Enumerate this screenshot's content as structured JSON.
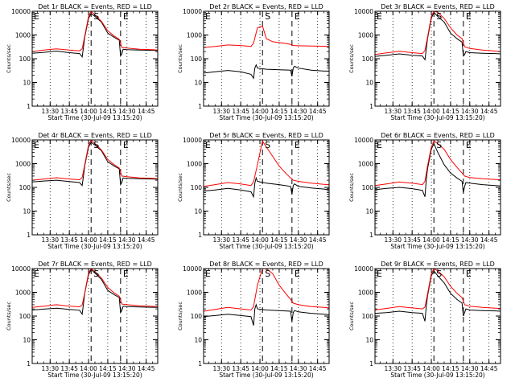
{
  "figure": {
    "x_title": "Start Time (30-Jul-09 13:15:20)",
    "y_title": "Counts/sec",
    "x_ticks": [
      "13:30",
      "13:45",
      "14:00",
      "14:15",
      "14:30",
      "14:45"
    ],
    "y_ticks": [
      "1",
      "10",
      "100",
      "1000",
      "10000"
    ],
    "marker_labels": [
      "E",
      "S",
      "E"
    ]
  },
  "colors": {
    "events": "#000000",
    "lld": "#ff0000",
    "axes": "#000000"
  },
  "chart_data": [
    {
      "type": "line",
      "title": "Det 1r BLACK = Events, RED = LLD",
      "xlabel": "Start Time (30-Jul-09 13:15:20)",
      "ylabel": "Counts/sec",
      "yscale": "log",
      "ylim": [
        1,
        10000
      ],
      "xlim": [
        "13:16",
        "14:54"
      ],
      "markers": {
        "E1": "13:15",
        "S": "14:02",
        "E2": "14:25"
      },
      "series": [
        {
          "name": "BLACK",
          "x": [
            "13:16",
            "13:25",
            "13:35",
            "13:45",
            "13:53",
            "13:55",
            "13:56",
            "13:57",
            "14:00",
            "14:02",
            "14:05",
            "14:10",
            "14:15",
            "14:20",
            "14:24",
            "14:25",
            "14:26",
            "14:27",
            "14:30",
            "14:40",
            "14:50",
            "14:54"
          ],
          "values": [
            170,
            185,
            210,
            180,
            165,
            120,
            300,
            800,
            5000,
            8000,
            6000,
            3500,
            1200,
            800,
            600,
            130,
            160,
            250,
            240,
            230,
            225,
            220
          ]
        },
        {
          "name": "RED",
          "x": [
            "13:16",
            "13:25",
            "13:35",
            "13:45",
            "13:53",
            "13:55",
            "13:57",
            "14:00",
            "14:02",
            "14:05",
            "14:10",
            "14:15",
            "14:20",
            "14:24",
            "14:26",
            "14:30",
            "14:40",
            "14:50",
            "14:54"
          ],
          "values": [
            200,
            230,
            260,
            230,
            215,
            260,
            900,
            6000,
            10000,
            7000,
            3800,
            1500,
            900,
            650,
            300,
            280,
            250,
            240,
            230
          ]
        }
      ]
    },
    {
      "type": "line",
      "title": "Det 2r BLACK = Events, RED = LLD",
      "xlabel": "Start Time (30-Jul-09 13:15:20)",
      "ylabel": "Counts/sec",
      "yscale": "log",
      "ylim": [
        1,
        10000
      ],
      "xlim": [
        "13:16",
        "14:54"
      ],
      "markers": {
        "E1": "13:15",
        "S": "14:02",
        "E2": "14:25"
      },
      "series": [
        {
          "name": "BLACK",
          "x": [
            "13:16",
            "13:25",
            "13:35",
            "13:45",
            "13:53",
            "13:55",
            "13:56",
            "13:57",
            "13:58",
            "14:05",
            "14:15",
            "14:24",
            "14:25",
            "14:26",
            "14:27",
            "14:30",
            "14:40",
            "14:50",
            "14:54"
          ],
          "values": [
            25,
            28,
            32,
            28,
            22,
            15,
            40,
            55,
            40,
            36,
            34,
            33,
            18,
            40,
            48,
            40,
            33,
            30,
            30
          ]
        },
        {
          "name": "RED",
          "x": [
            "13:16",
            "13:25",
            "13:35",
            "13:45",
            "13:53",
            "13:55",
            "13:58",
            "14:02",
            "14:05",
            "14:10",
            "14:15",
            "14:20",
            "14:24",
            "14:26",
            "14:30",
            "14:40",
            "14:50",
            "14:54"
          ],
          "values": [
            300,
            330,
            380,
            360,
            330,
            450,
            2000,
            2400,
            700,
            520,
            480,
            440,
            400,
            360,
            350,
            340,
            335,
            330
          ]
        }
      ]
    },
    {
      "type": "line",
      "title": "Det 3r BLACK = Events, RED = LLD",
      "xlabel": "Start Time (30-Jul-09 13:15:20)",
      "ylabel": "Counts/sec",
      "yscale": "log",
      "ylim": [
        1,
        10000
      ],
      "xlim": [
        "13:16",
        "14:54"
      ],
      "markers": {
        "E1": "13:15",
        "S": "14:02",
        "E2": "14:25"
      },
      "series": [
        {
          "name": "BLACK",
          "x": [
            "13:16",
            "13:25",
            "13:35",
            "13:45",
            "13:53",
            "13:55",
            "13:56",
            "13:57",
            "14:00",
            "14:02",
            "14:05",
            "14:10",
            "14:15",
            "14:20",
            "14:24",
            "14:25",
            "14:26",
            "14:27",
            "14:30",
            "14:40",
            "14:50",
            "14:54"
          ],
          "values": [
            125,
            140,
            160,
            140,
            130,
            90,
            250,
            700,
            5000,
            9000,
            6000,
            3500,
            1200,
            700,
            500,
            130,
            150,
            200,
            180,
            170,
            165,
            160
          ]
        },
        {
          "name": "RED",
          "x": [
            "13:16",
            "13:25",
            "13:35",
            "13:45",
            "13:53",
            "13:55",
            "13:57",
            "14:00",
            "14:02",
            "14:05",
            "14:10",
            "14:15",
            "14:20",
            "14:24",
            "14:26",
            "14:30",
            "14:40",
            "14:50",
            "14:54"
          ],
          "values": [
            150,
            175,
            205,
            180,
            165,
            220,
            800,
            6000,
            10000,
            9000,
            5000,
            2000,
            1000,
            700,
            320,
            270,
            230,
            210,
            200
          ]
        }
      ]
    },
    {
      "type": "line",
      "title": "Det 4r BLACK = Events, RED = LLD",
      "xlabel": "Start Time (30-Jul-09 13:15:20)",
      "ylabel": "Counts/sec",
      "yscale": "log",
      "ylim": [
        1,
        10000
      ],
      "xlim": [
        "13:16",
        "14:54"
      ],
      "markers": {
        "E1": "13:15",
        "S": "14:02",
        "E2": "14:25"
      },
      "series": [
        {
          "name": "BLACK",
          "x": [
            "13:16",
            "13:25",
            "13:35",
            "13:45",
            "13:53",
            "13:55",
            "13:56",
            "13:57",
            "14:00",
            "14:02",
            "14:05",
            "14:10",
            "14:15",
            "14:20",
            "14:24",
            "14:25",
            "14:26",
            "14:27",
            "14:30",
            "14:40",
            "14:50",
            "14:54"
          ],
          "values": [
            170,
            185,
            200,
            175,
            160,
            120,
            300,
            800,
            5000,
            8000,
            6000,
            3500,
            1200,
            800,
            600,
            130,
            160,
            250,
            240,
            230,
            225,
            220
          ]
        },
        {
          "name": "RED",
          "x": [
            "13:16",
            "13:25",
            "13:35",
            "13:45",
            "13:53",
            "13:55",
            "13:57",
            "14:00",
            "14:02",
            "14:05",
            "14:10",
            "14:15",
            "14:20",
            "14:24",
            "14:26",
            "14:30",
            "14:40",
            "14:50",
            "14:54"
          ],
          "values": [
            200,
            225,
            255,
            225,
            210,
            260,
            900,
            6000,
            10000,
            7000,
            3800,
            1500,
            900,
            650,
            300,
            280,
            250,
            240,
            230
          ]
        }
      ]
    },
    {
      "type": "line",
      "title": "Det 5r BLACK = Events, RED = LLD",
      "xlabel": "Start Time (30-Jul-09 13:15:20)",
      "ylabel": "Counts/sec",
      "yscale": "log",
      "ylim": [
        1,
        10000
      ],
      "xlim": [
        "13:16",
        "14:54"
      ],
      "markers": {
        "E1": "13:15",
        "S": "14:02",
        "E2": "14:25"
      },
      "series": [
        {
          "name": "BLACK",
          "x": [
            "13:16",
            "13:25",
            "13:35",
            "13:45",
            "13:53",
            "13:55",
            "13:56",
            "13:57",
            "13:58",
            "14:05",
            "14:15",
            "14:24",
            "14:25",
            "14:26",
            "14:27",
            "14:30",
            "14:40",
            "14:50",
            "14:54"
          ],
          "values": [
            70,
            78,
            90,
            78,
            65,
            40,
            150,
            250,
            180,
            150,
            130,
            110,
            50,
            120,
            140,
            110,
            95,
            85,
            80
          ]
        },
        {
          "name": "RED",
          "x": [
            "13:16",
            "13:25",
            "13:35",
            "13:45",
            "13:53",
            "13:55",
            "13:58",
            "14:02",
            "14:05",
            "14:10",
            "14:15",
            "14:20",
            "14:24",
            "14:26",
            "14:30",
            "14:40",
            "14:50",
            "14:54"
          ],
          "values": [
            110,
            130,
            160,
            140,
            120,
            170,
            900,
            9000,
            5000,
            2000,
            800,
            400,
            250,
            200,
            180,
            150,
            135,
            130
          ]
        }
      ]
    },
    {
      "type": "line",
      "title": "Det 6r BLACK = Events, RED = LLD",
      "xlabel": "Start Time (30-Jul-09 13:15:20)",
      "ylabel": "Counts/sec",
      "yscale": "log",
      "ylim": [
        1,
        10000
      ],
      "xlim": [
        "13:16",
        "14:54"
      ],
      "markers": {
        "E1": "13:15",
        "S": "14:02",
        "E2": "14:25"
      },
      "series": [
        {
          "name": "BLACK",
          "x": [
            "13:16",
            "13:25",
            "13:35",
            "13:45",
            "13:53",
            "13:55",
            "13:56",
            "13:57",
            "14:00",
            "14:02",
            "14:05",
            "14:10",
            "14:15",
            "14:20",
            "14:24",
            "14:25",
            "14:26",
            "14:27",
            "14:30",
            "14:40",
            "14:50",
            "14:54"
          ],
          "values": [
            80,
            90,
            100,
            88,
            75,
            40,
            200,
            600,
            4000,
            7000,
            3000,
            900,
            400,
            250,
            180,
            60,
            110,
            160,
            150,
            130,
            120,
            115
          ]
        },
        {
          "name": "RED",
          "x": [
            "13:16",
            "13:25",
            "13:35",
            "13:45",
            "13:53",
            "13:55",
            "13:57",
            "14:00",
            "14:02",
            "14:05",
            "14:10",
            "14:15",
            "14:20",
            "14:24",
            "14:26",
            "14:30",
            "14:40",
            "14:50",
            "14:54"
          ],
          "values": [
            120,
            140,
            170,
            150,
            130,
            180,
            800,
            5000,
            9000,
            7000,
            4000,
            1500,
            700,
            400,
            300,
            260,
            230,
            215,
            210
          ]
        }
      ]
    },
    {
      "type": "line",
      "title": "Det 7r BLACK = Events, RED = LLD",
      "xlabel": "Start Time (30-Jul-09 13:15:20)",
      "ylabel": "Counts/sec",
      "yscale": "log",
      "ylim": [
        1,
        10000
      ],
      "xlim": [
        "13:16",
        "14:54"
      ],
      "markers": {
        "E1": "13:15",
        "S": "14:02",
        "E2": "14:25"
      },
      "series": [
        {
          "name": "BLACK",
          "x": [
            "13:16",
            "13:25",
            "13:35",
            "13:45",
            "13:53",
            "13:55",
            "13:56",
            "13:57",
            "14:00",
            "14:02",
            "14:05",
            "14:10",
            "14:15",
            "14:20",
            "14:24",
            "14:25",
            "14:26",
            "14:27",
            "14:30",
            "14:40",
            "14:50",
            "14:54"
          ],
          "values": [
            180,
            195,
            215,
            190,
            175,
            120,
            320,
            900,
            5500,
            9000,
            6500,
            3500,
            1200,
            800,
            600,
            140,
            170,
            260,
            250,
            240,
            235,
            230
          ]
        },
        {
          "name": "RED",
          "x": [
            "13:16",
            "13:25",
            "13:35",
            "13:45",
            "13:53",
            "13:55",
            "13:57",
            "14:00",
            "14:02",
            "14:05",
            "14:10",
            "14:15",
            "14:20",
            "14:24",
            "14:26",
            "14:30",
            "14:40",
            "14:50",
            "14:54"
          ],
          "values": [
            230,
            260,
            300,
            260,
            245,
            290,
            950,
            6500,
            10000,
            7500,
            4000,
            1600,
            950,
            680,
            320,
            300,
            270,
            255,
            250
          ]
        }
      ]
    },
    {
      "type": "line",
      "title": "Det 8r BLACK = Events, RED = LLD",
      "xlabel": "Start Time (30-Jul-09 13:15:20)",
      "ylabel": "Counts/sec",
      "yscale": "log",
      "ylim": [
        1,
        10000
      ],
      "xlim": [
        "13:16",
        "14:54"
      ],
      "markers": {
        "E1": "13:15",
        "S": "14:02",
        "E2": "14:25"
      },
      "series": [
        {
          "name": "BLACK",
          "x": [
            "13:16",
            "13:25",
            "13:35",
            "13:45",
            "13:53",
            "13:55",
            "13:56",
            "13:57",
            "13:58",
            "14:05",
            "14:15",
            "14:24",
            "14:25",
            "14:26",
            "14:27",
            "14:30",
            "14:40",
            "14:50",
            "14:54"
          ],
          "values": [
            95,
            105,
            120,
            105,
            95,
            40,
            200,
            300,
            200,
            180,
            170,
            160,
            60,
            140,
            170,
            150,
            130,
            120,
            115
          ]
        },
        {
          "name": "RED",
          "x": [
            "13:16",
            "13:25",
            "13:35",
            "13:45",
            "13:53",
            "13:55",
            "13:58",
            "14:02",
            "14:05",
            "14:10",
            "14:15",
            "14:20",
            "14:24",
            "14:26",
            "14:30",
            "14:40",
            "14:50",
            "14:54"
          ],
          "values": [
            160,
            190,
            230,
            200,
            180,
            250,
            2000,
            10000,
            10000,
            6000,
            2000,
            900,
            500,
            350,
            300,
            250,
            230,
            220
          ]
        }
      ]
    },
    {
      "type": "line",
      "title": "Det 9r BLACK = Events, RED = LLD",
      "xlabel": "Start Time (30-Jul-09 13:15:20)",
      "ylabel": "Counts/sec",
      "yscale": "log",
      "ylim": [
        1,
        10000
      ],
      "xlim": [
        "13:16",
        "14:54"
      ],
      "markers": {
        "E1": "13:15",
        "S": "14:02",
        "E2": "14:25"
      },
      "series": [
        {
          "name": "BLACK",
          "x": [
            "13:16",
            "13:25",
            "13:35",
            "13:45",
            "13:53",
            "13:55",
            "13:56",
            "13:57",
            "14:00",
            "14:02",
            "14:05",
            "14:10",
            "14:15",
            "14:20",
            "14:24",
            "14:25",
            "14:26",
            "14:27",
            "14:30",
            "14:40",
            "14:50",
            "14:54"
          ],
          "values": [
            130,
            140,
            160,
            140,
            130,
            60,
            250,
            700,
            5000,
            8000,
            5000,
            2500,
            900,
            500,
            350,
            100,
            140,
            200,
            180,
            170,
            165,
            160
          ]
        },
        {
          "name": "RED",
          "x": [
            "13:16",
            "13:25",
            "13:35",
            "13:45",
            "13:53",
            "13:55",
            "13:57",
            "14:00",
            "14:02",
            "14:05",
            "14:10",
            "14:15",
            "14:20",
            "14:24",
            "14:26",
            "14:30",
            "14:40",
            "14:50",
            "14:54"
          ],
          "values": [
            180,
            210,
            250,
            220,
            200,
            240,
            850,
            6000,
            10000,
            8000,
            4500,
            1800,
            900,
            600,
            300,
            260,
            230,
            215,
            210
          ]
        }
      ]
    }
  ]
}
